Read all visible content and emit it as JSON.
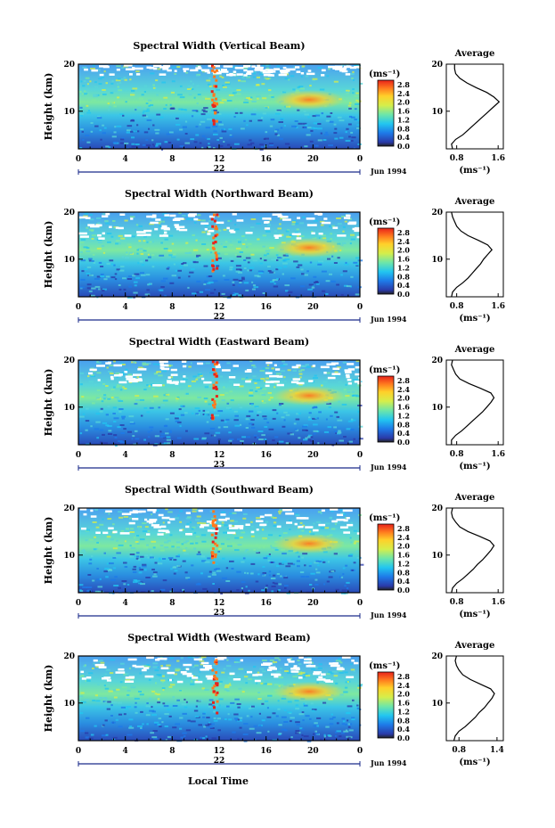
{
  "figure": {
    "xaxis_label": "Local Time",
    "ylabel": "Height (km)",
    "unit_label": "(ms⁻¹)",
    "average_title": "Average",
    "month_label": "Jun 1994",
    "colorbar_ticks": [
      "2.8",
      "2.4",
      "2.0",
      "1.6",
      "1.2",
      "0.8",
      "0.4",
      "0.0"
    ]
  },
  "chart_data": [
    {
      "type": "heatmap",
      "title": "Spectral Width (Vertical Beam)",
      "xlabel": "",
      "ylabel": "Height (km)",
      "x_ticks": [
        "0",
        "4",
        "8",
        "12",
        "16",
        "20",
        "0"
      ],
      "y_ticks": [
        "10",
        "20"
      ],
      "xlim": [
        0,
        24
      ],
      "ylim": [
        2,
        20
      ],
      "day_label": "22",
      "colorbar": {
        "label": "(ms⁻¹)",
        "ticks": [
          2.8,
          2.4,
          2.0,
          1.6,
          1.2,
          0.8,
          0.4,
          0.0
        ],
        "range": [
          0.0,
          3.0
        ]
      },
      "average_profile": {
        "title": "Average",
        "xlabel": "(ms⁻¹)",
        "x_ticks": [
          "0.8",
          "1.6"
        ],
        "xlim": [
          0.6,
          1.7
        ],
        "y_ticks": [
          "10",
          "20"
        ],
        "heights_km": [
          2,
          3,
          4,
          5,
          6,
          7,
          8,
          9,
          10,
          11,
          12,
          13,
          14,
          15,
          16,
          17,
          18,
          19,
          20
        ],
        "values": [
          0.72,
          0.7,
          0.78,
          0.92,
          1.02,
          1.12,
          1.22,
          1.32,
          1.42,
          1.52,
          1.62,
          1.52,
          1.38,
          1.18,
          1.0,
          0.86,
          0.78,
          0.76,
          0.76
        ]
      }
    },
    {
      "type": "heatmap",
      "title": "Spectral Width (Northward Beam)",
      "xlabel": "",
      "ylabel": "Height (km)",
      "x_ticks": [
        "0",
        "4",
        "8",
        "12",
        "16",
        "20",
        "0"
      ],
      "y_ticks": [
        "10",
        "20"
      ],
      "xlim": [
        0,
        24
      ],
      "ylim": [
        2,
        20
      ],
      "day_label": "22",
      "colorbar": {
        "label": "(ms⁻¹)",
        "ticks": [
          2.8,
          2.4,
          2.0,
          1.6,
          1.2,
          0.8,
          0.4,
          0.0
        ],
        "range": [
          0.0,
          3.0
        ]
      },
      "average_profile": {
        "title": "Average",
        "xlabel": "(ms⁻¹)",
        "x_ticks": [
          "0.8",
          "1.6"
        ],
        "xlim": [
          0.6,
          1.7
        ],
        "y_ticks": [
          "10",
          "20"
        ],
        "heights_km": [
          2,
          3,
          4,
          5,
          6,
          7,
          8,
          9,
          10,
          11,
          12,
          13,
          14,
          15,
          16,
          17,
          18,
          19,
          20
        ],
        "values": [
          0.7,
          0.72,
          0.8,
          0.92,
          1.02,
          1.1,
          1.18,
          1.26,
          1.32,
          1.4,
          1.48,
          1.4,
          1.22,
          1.02,
          0.88,
          0.8,
          0.76,
          0.72,
          0.7
        ]
      }
    },
    {
      "type": "heatmap",
      "title": "Spectral Width (Eastward Beam)",
      "xlabel": "",
      "ylabel": "Height (km)",
      "x_ticks": [
        "0",
        "4",
        "8",
        "12",
        "16",
        "20",
        "0"
      ],
      "y_ticks": [
        "10",
        "20"
      ],
      "xlim": [
        0,
        24
      ],
      "ylim": [
        2,
        20
      ],
      "day_label": "23",
      "colorbar": {
        "label": "(ms⁻¹)",
        "ticks": [
          2.8,
          2.4,
          2.0,
          1.6,
          1.2,
          0.8,
          0.4,
          0.0
        ],
        "range": [
          0.0,
          3.0
        ]
      },
      "average_profile": {
        "title": "Average",
        "xlabel": "(ms⁻¹)",
        "x_ticks": [
          "0.8",
          "1.6"
        ],
        "xlim": [
          0.6,
          1.7
        ],
        "y_ticks": [
          "10",
          "20"
        ],
        "heights_km": [
          2,
          3,
          4,
          5,
          6,
          7,
          8,
          9,
          10,
          11,
          12,
          13,
          14,
          15,
          16,
          17,
          18,
          19,
          20
        ],
        "values": [
          0.7,
          0.7,
          0.78,
          0.9,
          1.0,
          1.1,
          1.2,
          1.3,
          1.38,
          1.46,
          1.52,
          1.46,
          1.26,
          1.04,
          0.86,
          0.78,
          0.74,
          0.7,
          0.72
        ]
      }
    },
    {
      "type": "heatmap",
      "title": "Spectral Width (Southward Beam)",
      "xlabel": "",
      "ylabel": "Height (km)",
      "x_ticks": [
        "0",
        "4",
        "8",
        "12",
        "16",
        "20",
        "0"
      ],
      "y_ticks": [
        "10",
        "20"
      ],
      "xlim": [
        0,
        24
      ],
      "ylim": [
        2,
        20
      ],
      "day_label": "23",
      "colorbar": {
        "label": "(ms⁻¹)",
        "ticks": [
          2.8,
          2.4,
          2.0,
          1.6,
          1.2,
          0.8,
          0.4,
          0.0
        ],
        "range": [
          0.0,
          3.0
        ]
      },
      "average_profile": {
        "title": "Average",
        "xlabel": "(ms⁻¹)",
        "x_ticks": [
          "0.8",
          "1.6"
        ],
        "xlim": [
          0.6,
          1.7
        ],
        "y_ticks": [
          "10",
          "20"
        ],
        "heights_km": [
          2,
          3,
          4,
          5,
          6,
          7,
          8,
          9,
          10,
          11,
          12,
          13,
          14,
          15,
          16,
          17,
          18,
          19,
          20
        ],
        "values": [
          0.7,
          0.72,
          0.8,
          0.92,
          1.02,
          1.12,
          1.2,
          1.3,
          1.38,
          1.46,
          1.52,
          1.44,
          1.24,
          1.02,
          0.86,
          0.78,
          0.72,
          0.7,
          0.72
        ]
      }
    },
    {
      "type": "heatmap",
      "title": "Spectral Width (Westward Beam)",
      "xlabel": "",
      "ylabel": "Height (km)",
      "x_ticks": [
        "0",
        "4",
        "8",
        "12",
        "16",
        "20",
        "0"
      ],
      "y_ticks": [
        "10",
        "20"
      ],
      "xlim": [
        0,
        24
      ],
      "ylim": [
        2,
        20
      ],
      "day_label": "22",
      "colorbar": {
        "label": "(ms⁻¹)",
        "ticks": [
          2.8,
          2.4,
          2.0,
          1.6,
          1.2,
          0.8,
          0.4,
          0.0
        ],
        "range": [
          0.0,
          3.0
        ]
      },
      "average_profile": {
        "title": "Average",
        "xlabel": "(ms⁻¹)",
        "x_ticks": [
          "0.8",
          "1.4"
        ],
        "xlim": [
          0.6,
          1.5
        ],
        "y_ticks": [
          "10",
          "20"
        ],
        "heights_km": [
          2,
          3,
          4,
          5,
          6,
          7,
          8,
          9,
          10,
          11,
          12,
          13,
          14,
          15,
          16,
          17,
          18,
          19,
          20
        ],
        "values": [
          0.72,
          0.74,
          0.8,
          0.9,
          0.98,
          1.06,
          1.12,
          1.2,
          1.26,
          1.32,
          1.36,
          1.3,
          1.14,
          0.98,
          0.86,
          0.8,
          0.76,
          0.74,
          0.76
        ]
      }
    }
  ]
}
